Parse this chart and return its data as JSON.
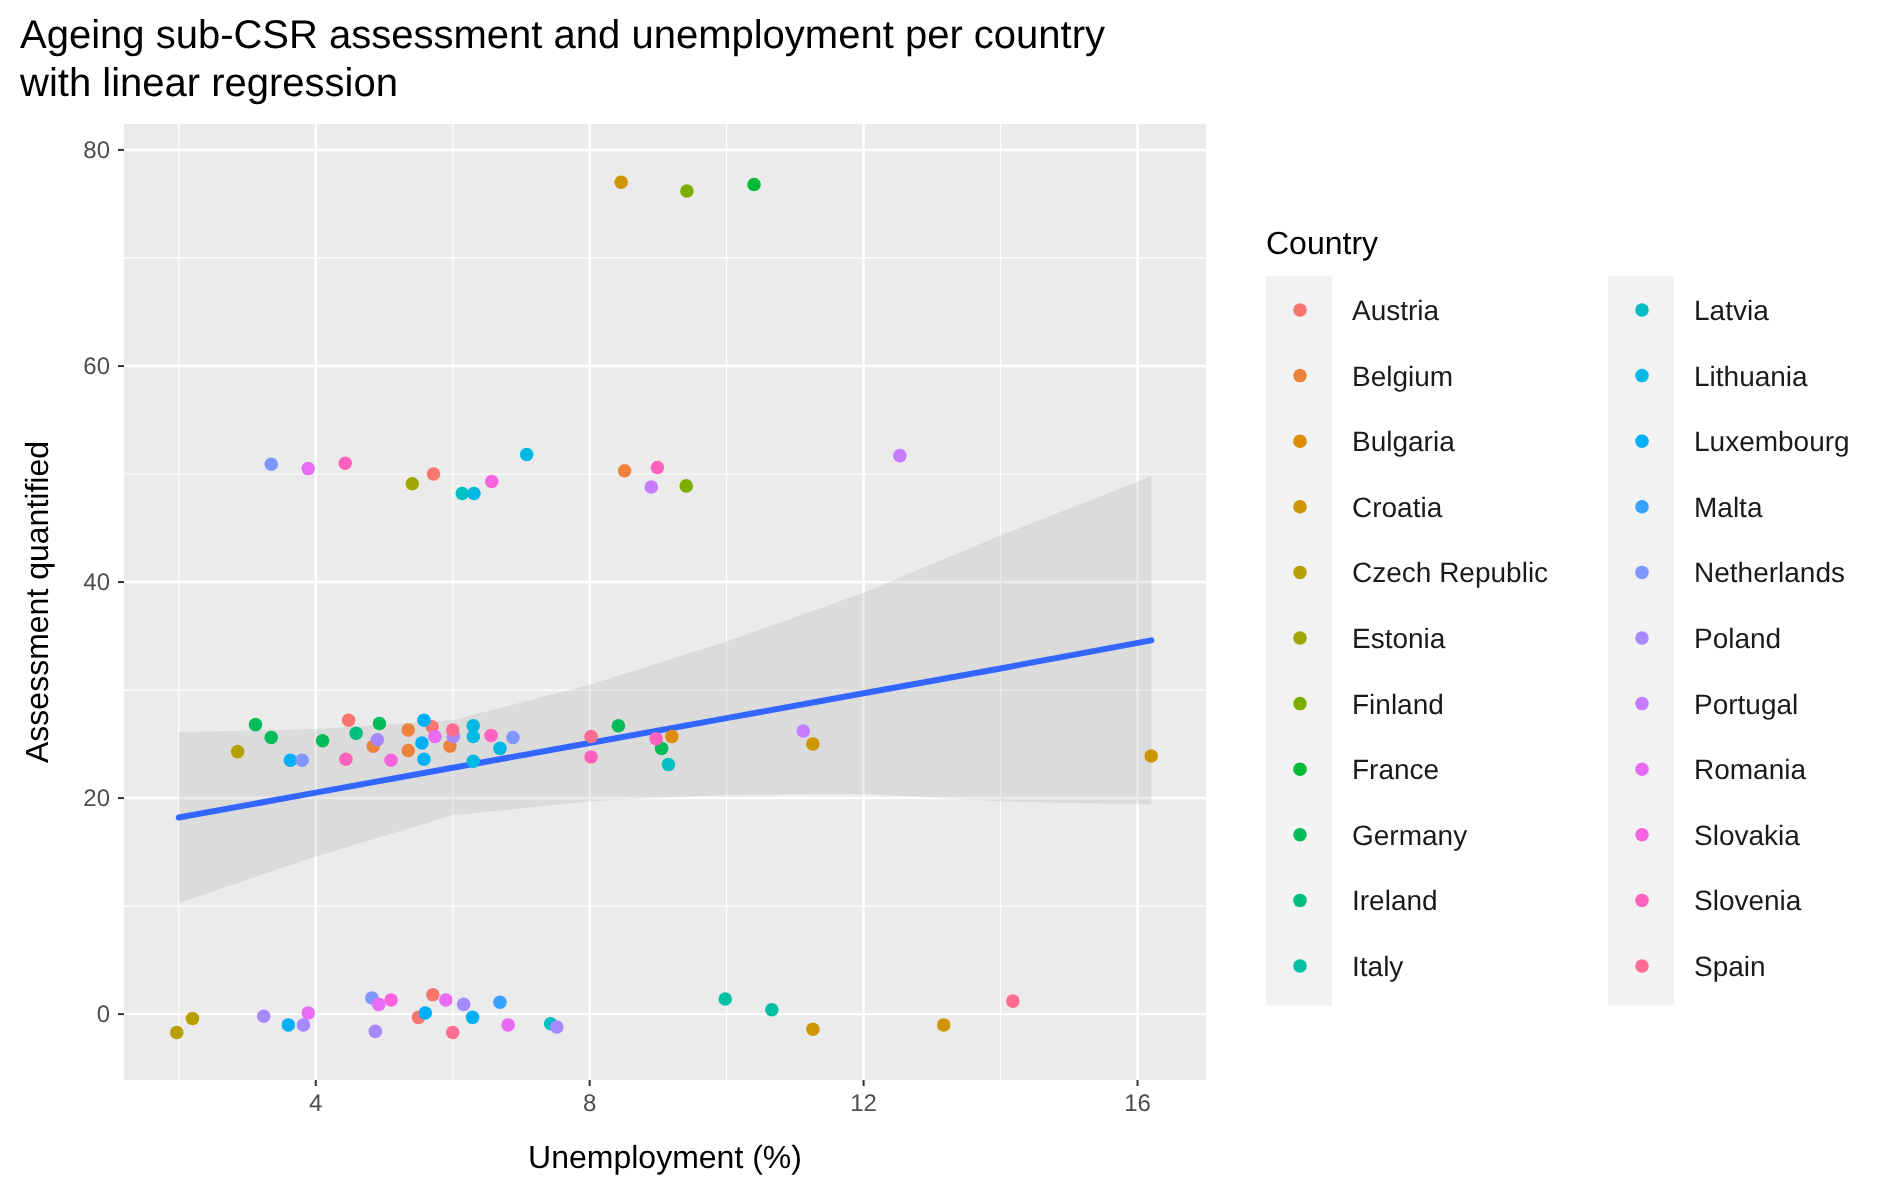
{
  "chart_data": {
    "type": "scatter",
    "title": "Ageing sub-CSR assessment and unemployment per country with linear regression",
    "xlabel": "Unemployment (%)",
    "ylabel": "Assessment quantified",
    "legend_title": "Country",
    "legend": "right",
    "grid": true,
    "marker": "circle",
    "xlim": [
      1.2,
      17
    ],
    "ylim": [
      -6.1,
      82.4
    ],
    "xticks": [
      4,
      8,
      12,
      16
    ],
    "yticks": [
      0,
      20,
      40,
      60,
      80
    ],
    "series": [
      {
        "name": "Austria",
        "color": "#f8766d",
        "x": [
          5.72,
          4.48,
          5.7,
          5.5,
          5.71
        ],
        "values": [
          50.0,
          27.2,
          26.6,
          -0.3,
          1.8
        ]
      },
      {
        "name": "Belgium",
        "color": "#ec823c",
        "x": [
          8.51,
          4.84,
          5.35,
          5.35,
          5.96
        ],
        "values": [
          50.3,
          24.8,
          26.3,
          24.4,
          24.8
        ]
      },
      {
        "name": "Bulgaria",
        "color": "#de8c00",
        "x": [
          9.2
        ],
        "values": [
          25.7
        ]
      },
      {
        "name": "Croatia",
        "color": "#cd9600",
        "x": [
          8.46,
          11.26,
          16.2,
          11.26,
          13.17
        ],
        "values": [
          77.0,
          25.0,
          23.9,
          -1.4,
          -1.0
        ]
      },
      {
        "name": "Czech Republic",
        "color": "#b79f00",
        "x": [
          2.86,
          1.97,
          2.2
        ],
        "values": [
          24.3,
          -1.7,
          -0.4
        ]
      },
      {
        "name": "Estonia",
        "color": "#9da700",
        "x": [
          5.41
        ],
        "values": [
          49.1
        ]
      },
      {
        "name": "Finland",
        "color": "#7cae00",
        "x": [
          9.42,
          9.41
        ],
        "values": [
          76.2,
          48.9
        ]
      },
      {
        "name": "France",
        "color": "#00ba38",
        "x": [
          10.4
        ],
        "values": [
          76.8
        ]
      },
      {
        "name": "Germany",
        "color": "#00bc59",
        "x": [
          3.12,
          3.35,
          4.1,
          4.93,
          8.42,
          9.05
        ],
        "values": [
          26.8,
          25.6,
          25.3,
          26.9,
          26.7,
          24.6
        ]
      },
      {
        "name": "Ireland",
        "color": "#00bf7d",
        "x": [
          4.59
        ],
        "values": [
          26.0
        ]
      },
      {
        "name": "Italy",
        "color": "#00c0a3",
        "x": [
          9.98,
          10.66
        ],
        "values": [
          1.4,
          0.4
        ]
      },
      {
        "name": "Latvia",
        "color": "#00bfc4",
        "x": [
          6.14,
          9.15,
          7.43
        ],
        "values": [
          48.2,
          23.1,
          -0.9
        ]
      },
      {
        "name": "Lithuania",
        "color": "#00b9e3",
        "x": [
          6.31,
          7.08,
          6.3,
          6.3,
          6.3,
          6.69
        ],
        "values": [
          48.2,
          51.8,
          26.7,
          25.7,
          23.4,
          24.6
        ]
      },
      {
        "name": "Luxembourg",
        "color": "#00b0f6",
        "x": [
          3.63,
          5.58,
          5.55,
          5.58,
          3.6,
          5.6,
          6.29
        ],
        "values": [
          23.5,
          27.2,
          25.1,
          23.6,
          -1.0,
          0.1,
          -0.3
        ]
      },
      {
        "name": "Malta",
        "color": "#35a2ff",
        "x": [
          6.69
        ],
        "values": [
          1.1
        ]
      },
      {
        "name": "Netherlands",
        "color": "#7f96ff",
        "x": [
          3.35,
          3.8,
          6.88,
          4.82
        ],
        "values": [
          50.9,
          23.5,
          25.6,
          1.5
        ]
      },
      {
        "name": "Poland",
        "color": "#a58aff",
        "x": [
          4.9,
          6.01,
          3.24,
          3.82,
          4.87,
          6.16,
          7.52
        ],
        "values": [
          25.4,
          25.7,
          -0.2,
          -1.0,
          -1.6,
          0.9,
          -1.2
        ]
      },
      {
        "name": "Portugal",
        "color": "#c77cff",
        "x": [
          8.9,
          12.53,
          11.12
        ],
        "values": [
          48.8,
          51.7,
          26.2
        ]
      },
      {
        "name": "Romania",
        "color": "#e76bf3",
        "x": [
          3.89,
          5.74,
          3.89,
          4.92,
          5.9,
          6.81
        ],
        "values": [
          50.5,
          25.7,
          0.1,
          0.9,
          1.3,
          -1.0
        ]
      },
      {
        "name": "Slovakia",
        "color": "#f863df",
        "x": [
          6.57,
          5.1,
          5.1
        ],
        "values": [
          49.3,
          23.5,
          1.3
        ]
      },
      {
        "name": "Slovenia",
        "color": "#ff62bc",
        "x": [
          4.43,
          8.99,
          4.44,
          6.56,
          8.02,
          8.97
        ],
        "values": [
          51.0,
          50.6,
          23.6,
          25.8,
          23.8,
          25.5
        ]
      },
      {
        "name": "Spain",
        "color": "#ff6c91",
        "x": [
          6.0,
          8.02,
          6.0,
          14.18
        ],
        "values": [
          26.3,
          25.7,
          -1.7,
          1.2
        ]
      },
      {
        "type": "line",
        "marker": "none",
        "color": "#3366ff",
        "x": [
          2,
          4,
          6,
          8,
          10,
          12,
          14,
          16.2
        ],
        "values": [
          18.2,
          20.5,
          22.8,
          25.1,
          27.4,
          29.7,
          32.0,
          34.6
        ],
        "lower": [
          10.3,
          14.6,
          18.4,
          19.7,
          20.3,
          20.4,
          19.7,
          19.4
        ],
        "upper": [
          26.1,
          26.4,
          27.2,
          30.5,
          34.5,
          39.0,
          44.3,
          49.8
        ]
      }
    ]
  }
}
